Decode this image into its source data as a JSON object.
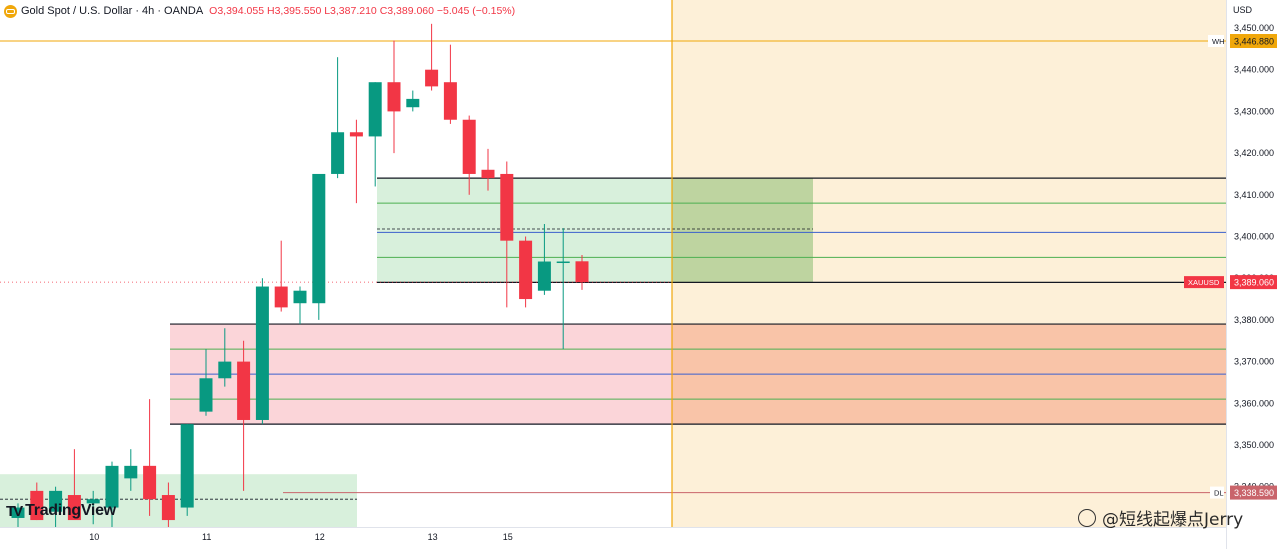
{
  "header": {
    "symbol_title": "Gold Spot / U.S. Dollar · 4h · OANDA",
    "open": "O3,394.055",
    "high": "H3,395.550",
    "low": "L3,387.210",
    "close": "C3,389.060",
    "change": "−5.045 (−0.15%)"
  },
  "price_axis": {
    "unit": "USD",
    "ticks": [
      "3,450.000",
      "3,440.000",
      "3,430.000",
      "3,420.000",
      "3,410.000",
      "3,400.000",
      "3,390.000",
      "3,380.000",
      "3,370.000",
      "3,360.000",
      "3,350.000",
      "3,340.000"
    ]
  },
  "time_axis": {
    "ticks": [
      "10",
      "11",
      "12",
      "13",
      "15"
    ]
  },
  "price_labels": {
    "wh_tag": "WH",
    "wh_value": "3,446.880",
    "symbol_tag": "XAUUSD",
    "last_value": "3,389.060",
    "dl_tag": "DL",
    "dl_value": "3,338.590"
  },
  "branding": {
    "logo_text": "TradingView",
    "watermark": "@短线起爆点Jerry"
  },
  "colors": {
    "up": "#089981",
    "down": "#f23645",
    "wh_line": "#f0a70a",
    "dl_line": "#c9646b"
  },
  "chart_data": {
    "type": "candlestick",
    "timeframe": "4h",
    "ylim": [
      3333.5,
      3455
    ],
    "week_high": 3446.88,
    "day_low": 3338.59,
    "last_price": 3389.06,
    "x_ticks": [
      "10",
      "11",
      "12",
      "13",
      "15"
    ],
    "candles": [
      {
        "o": 3332.5,
        "h": 3336,
        "l": 3329,
        "c": 3335
      },
      {
        "o": 3339,
        "h": 3341,
        "l": 3332,
        "c": 3332
      },
      {
        "o": 3334,
        "h": 3340,
        "l": 3330,
        "c": 3339
      },
      {
        "o": 3338,
        "h": 3349,
        "l": 3333,
        "c": 3332
      },
      {
        "o": 3336,
        "h": 3339,
        "l": 3331,
        "c": 3337
      },
      {
        "o": 3335,
        "h": 3346,
        "l": 3330,
        "c": 3345
      },
      {
        "o": 3342,
        "h": 3349,
        "l": 3339,
        "c": 3345
      },
      {
        "o": 3345,
        "h": 3361,
        "l": 3333,
        "c": 3337
      },
      {
        "o": 3338,
        "h": 3341,
        "l": 3330,
        "c": 3332
      },
      {
        "o": 3335,
        "h": 3355,
        "l": 3333,
        "c": 3355
      },
      {
        "o": 3358,
        "h": 3373,
        "l": 3357,
        "c": 3366
      },
      {
        "o": 3366,
        "h": 3378,
        "l": 3364,
        "c": 3370
      },
      {
        "o": 3370,
        "h": 3375,
        "l": 3339,
        "c": 3356
      },
      {
        "o": 3356,
        "h": 3390,
        "l": 3355,
        "c": 3388
      },
      {
        "o": 3388,
        "h": 3399,
        "l": 3382,
        "c": 3383
      },
      {
        "o": 3384,
        "h": 3388,
        "l": 3379,
        "c": 3387
      },
      {
        "o": 3384,
        "h": 3415,
        "l": 3380,
        "c": 3415
      },
      {
        "o": 3415,
        "h": 3443,
        "l": 3414,
        "c": 3425
      },
      {
        "o": 3425,
        "h": 3428,
        "l": 3408,
        "c": 3424
      },
      {
        "o": 3424,
        "h": 3437,
        "l": 3412,
        "c": 3437
      },
      {
        "o": 3437,
        "h": 3447,
        "l": 3420,
        "c": 3430
      },
      {
        "o": 3431,
        "h": 3435,
        "l": 3430,
        "c": 3433
      },
      {
        "o": 3440,
        "h": 3451,
        "l": 3435,
        "c": 3436
      },
      {
        "o": 3437,
        "h": 3446,
        "l": 3427,
        "c": 3428
      },
      {
        "o": 3428,
        "h": 3429,
        "l": 3410,
        "c": 3415
      },
      {
        "o": 3416,
        "h": 3421,
        "l": 3411,
        "c": 3414
      },
      {
        "o": 3415,
        "h": 3418,
        "l": 3383,
        "c": 3399
      },
      {
        "o": 3399,
        "h": 3400,
        "l": 3383,
        "c": 3385
      },
      {
        "o": 3387,
        "h": 3403,
        "l": 3386,
        "c": 3394
      },
      {
        "o": 3394,
        "h": 3402,
        "l": 3373,
        "c": 3394
      },
      {
        "o": 3394.055,
        "h": 3395.55,
        "l": 3387.21,
        "c": 3389.06
      }
    ],
    "zones": [
      {
        "name": "supply",
        "top": 3414,
        "mid": 3401,
        "bottom": 3389,
        "lines": [
          3408,
          3395
        ],
        "color": "green"
      },
      {
        "name": "demand",
        "top": 3379,
        "mid": 3367,
        "bottom": 3355,
        "lines": [
          3373,
          3361
        ],
        "color": "red"
      },
      {
        "name": "lower",
        "top": 3343,
        "bottom": 3333.5,
        "dashed": 3337,
        "color": "green"
      }
    ]
  }
}
